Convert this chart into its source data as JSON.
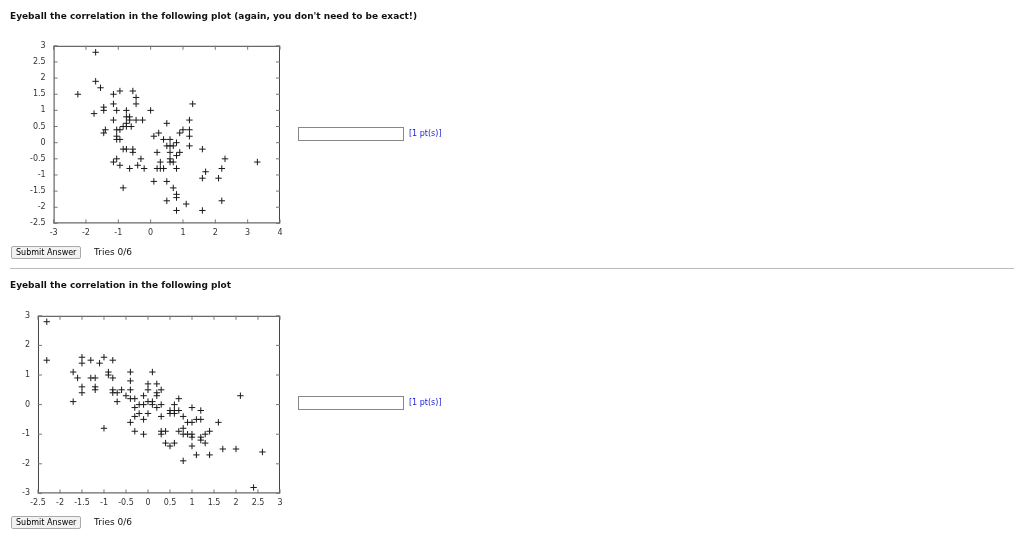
{
  "chart_data": [
    {
      "type": "scatter",
      "title": "Eyeball the correlation in the following plot (again, you don't need to be exact!)",
      "color": "#1a1a1a",
      "marker": "cross",
      "x": [
        -1.7,
        -1.7,
        -1.55,
        -2.25,
        -1.15,
        -0.95,
        -0.55,
        -0.45,
        -0.45,
        -1.15,
        -1.45,
        -1.45,
        -1.05,
        -0.75,
        0,
        -1.75,
        1.3,
        -0.75,
        -0.65,
        -1.15,
        -0.65,
        -0.45,
        -0.25,
        1.2,
        -0.75,
        0.5,
        -0.85,
        -0.75,
        -0.6,
        -1.4,
        -1.45,
        -1.05,
        -0.95,
        0.25,
        0.9,
        1.0,
        1.2,
        -1.05,
        -1.05,
        -0.95,
        0.1,
        0.4,
        0.6,
        1.2,
        0.8,
        0.5,
        0.6,
        0.7,
        1.2,
        -0.85,
        -0.75,
        -0.55,
        -0.55,
        0.6,
        0.2,
        0.9,
        1.6,
        0.8,
        -1.05,
        -0.3,
        0.6,
        2.3,
        -1.15,
        0.3,
        0.6,
        0.7,
        3.3,
        -0.95,
        -0.4,
        -0.65,
        -0.2,
        0.2,
        0.3,
        0.4,
        0.8,
        2.2,
        1.7,
        0.1,
        0.5,
        1.6,
        2.1,
        -0.85,
        0.7,
        0.8,
        0.8,
        0.5,
        2.2,
        1.1,
        0.8,
        1.6
      ],
      "values": [
        2.8,
        1.9,
        1.7,
        1.5,
        1.5,
        1.6,
        1.6,
        1.4,
        1.2,
        1.2,
        1.1,
        1.0,
        1.0,
        1.0,
        1.0,
        0.9,
        1.2,
        0.8,
        0.8,
        0.7,
        0.7,
        0.7,
        0.7,
        0.7,
        0.6,
        0.6,
        0.5,
        0.5,
        0.5,
        0.4,
        0.3,
        0.4,
        0.4,
        0.3,
        0.3,
        0.4,
        0.4,
        0.2,
        0.1,
        0.1,
        0.2,
        0.1,
        0.1,
        0.2,
        0,
        -0.1,
        -0.1,
        -0.1,
        -0.1,
        -0.2,
        -0.2,
        -0.2,
        -0.3,
        -0.3,
        -0.3,
        -0.3,
        -0.2,
        -0.4,
        -0.5,
        -0.5,
        -0.5,
        -0.5,
        -0.6,
        -0.6,
        -0.6,
        -0.6,
        -0.6,
        -0.7,
        -0.7,
        -0.8,
        -0.8,
        -0.8,
        -0.8,
        -0.8,
        -0.8,
        -0.8,
        -0.9,
        -1.2,
        -1.2,
        -1.1,
        -1.1,
        -1.4,
        -1.4,
        -1.6,
        -1.7,
        -1.8,
        -1.8,
        -1.9,
        -2.1,
        -2.1
      ],
      "xlim": [
        -3,
        4
      ],
      "xticks": [
        -3,
        -2,
        -1,
        0,
        1,
        2,
        3,
        4
      ],
      "ylim": [
        -2.5,
        3
      ],
      "yticks": [
        -2.5,
        -2,
        -1.5,
        -1,
        -0.5,
        0,
        0.5,
        1,
        1.5,
        2,
        2.5,
        3
      ],
      "annotations": [
        "[1 pt(s)]",
        "Submit Answer",
        "Tries 0/6"
      ]
    },
    {
      "type": "scatter",
      "title": "Eyeball the correlation in the following plot",
      "color": "#1a1a1a",
      "marker": "cross",
      "x": [
        -2.3,
        -2.3,
        -1.5,
        -1.5,
        -1.3,
        -1.1,
        -1.0,
        -0.8,
        -1.7,
        -1.6,
        -1.3,
        -1.2,
        -0.9,
        -0.9,
        -0.8,
        -0.4,
        -0.4,
        0.1,
        -1.5,
        -1.5,
        -1.2,
        -1.2,
        -0.8,
        -0.8,
        -0.7,
        -0.6,
        -0.7,
        -0.4,
        -0.5,
        -0.4,
        -0.3,
        0,
        0,
        0.2,
        0.2,
        0.2,
        0.3,
        -0.1,
        -1.7,
        0,
        0.1,
        -0.2,
        -0.1,
        0.1,
        0.3,
        0.6,
        -0.3,
        0.2,
        0.7,
        -0.2,
        0,
        -0.3,
        0.3,
        0.5,
        0.6,
        0.5,
        0.6,
        0.7,
        0.8,
        1.0,
        1.2,
        -0.4,
        -0.1,
        -1.0,
        0.3,
        0.4,
        -0.3,
        0.3,
        -0.1,
        0.7,
        0.8,
        0.8,
        0.9,
        0.9,
        1.0,
        1.0,
        1.0,
        1.1,
        1.2,
        1.2,
        1.2,
        1.3,
        1.4,
        1.3,
        0.4,
        0.5,
        0.6,
        1.0,
        1.1,
        1.4,
        0.8,
        1.6,
        1.7,
        2.0,
        2.6,
        2.1,
        2.4
      ],
      "values": [
        2.8,
        1.5,
        1.6,
        1.4,
        1.5,
        1.4,
        1.6,
        1.5,
        1.1,
        0.9,
        0.9,
        0.9,
        1.1,
        1.0,
        0.9,
        1.1,
        0.8,
        1.1,
        0.6,
        0.4,
        0.6,
        0.5,
        0.5,
        0.4,
        0.4,
        0.5,
        0.1,
        0.5,
        0.3,
        0.2,
        0.2,
        0.7,
        0.5,
        0.7,
        0.4,
        0.3,
        0.5,
        0.3,
        0.1,
        0.1,
        0.1,
        0,
        0,
        0,
        0,
        0,
        -0.1,
        -0.1,
        0.2,
        -0.3,
        -0.3,
        -0.4,
        -0.4,
        -0.2,
        -0.2,
        -0.3,
        -0.3,
        -0.2,
        -0.4,
        -0.1,
        -0.2,
        -0.6,
        -0.5,
        -0.8,
        -0.9,
        -0.9,
        -0.9,
        -1.0,
        -1.0,
        -0.9,
        -0.8,
        -1.0,
        -1.0,
        -0.6,
        -0.6,
        -1.0,
        -1.1,
        -0.5,
        -0.5,
        -1.1,
        -1.2,
        -1.0,
        -0.9,
        -1.3,
        -1.3,
        -1.4,
        -1.3,
        -1.4,
        -1.7,
        -1.7,
        -1.9,
        -0.6,
        -1.5,
        -1.5,
        -1.6,
        0.3,
        -2.8
      ],
      "xlim": [
        -2.5,
        3
      ],
      "xticks": [
        -2.5,
        -2,
        -1.5,
        -1,
        -0.5,
        0,
        0.5,
        1,
        1.5,
        2,
        2.5,
        3
      ],
      "ylim": [
        -3,
        3
      ],
      "yticks": [
        -3,
        -2,
        -1,
        0,
        1,
        2,
        3
      ],
      "annotations": [
        "[1 pt(s)]",
        "Submit Answer",
        "Tries 0/6"
      ]
    }
  ]
}
